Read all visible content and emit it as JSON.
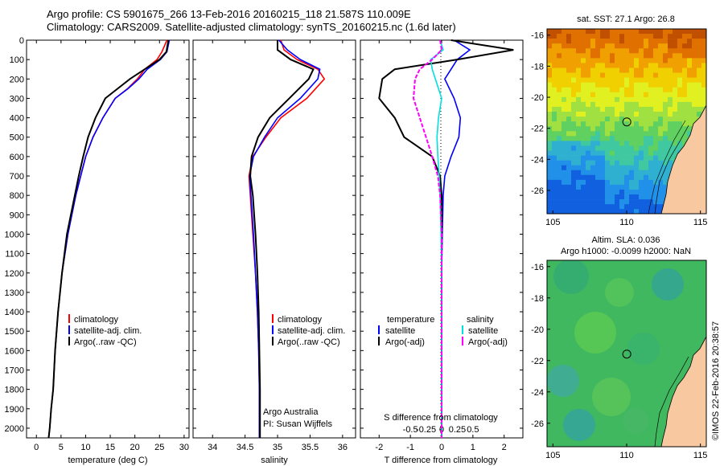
{
  "header": {
    "line1": "Argo profile: CS 5901675_266 13-Feb-2016 20160215_118 21.587S 110.009E",
    "line2": "Climatology: CARS2009. Satellite-adjusted climatology: synTS_20160215.nc (1.6d later)"
  },
  "colors": {
    "climatology": "#ff0000",
    "satellite": "#0000ff",
    "argo": "#000000",
    "sal_satellite": "#00e0e0",
    "sal_argo": "#ff00ff",
    "land": "#f8c8a0"
  },
  "chart_data": [
    {
      "type": "line",
      "id": "temperature",
      "xlabel": "temperature (deg C)",
      "xlim": [
        -2,
        31
      ],
      "ylim": [
        0,
        2050
      ],
      "xticks": [
        0,
        5,
        10,
        15,
        20,
        25,
        30
      ],
      "yticks": [
        0,
        100,
        200,
        300,
        400,
        500,
        600,
        700,
        800,
        900,
        1000,
        1100,
        1200,
        1300,
        1400,
        1500,
        1600,
        1700,
        1800,
        1900,
        2000
      ],
      "legend": [
        "climatology",
        "satellite-adj. clim.",
        "Argo(..raw -QC)"
      ],
      "series": [
        {
          "name": "climatology",
          "x": [
            26.5,
            25.5,
            24.5,
            22,
            20.5,
            18.5,
            16,
            13.5,
            11.5,
            10,
            9,
            8,
            7.2,
            6.4,
            5.2,
            4.4,
            3.8,
            3.4,
            3,
            2.7,
            2.5
          ],
          "y": [
            0,
            60,
            100,
            150,
            200,
            250,
            300,
            400,
            500,
            600,
            700,
            800,
            900,
            1000,
            1200,
            1400,
            1600,
            1800,
            1900,
            2000,
            2050
          ]
        },
        {
          "name": "satellite-adj. clim.",
          "x": [
            27,
            26.5,
            25.2,
            22.5,
            20.8,
            18.6,
            16,
            13.5,
            11.5,
            10,
            9,
            8,
            7.2,
            6.4,
            5.2,
            4.4,
            3.8,
            3.4,
            3,
            2.7,
            2.5
          ],
          "y": [
            0,
            60,
            100,
            150,
            200,
            250,
            300,
            400,
            500,
            600,
            700,
            800,
            900,
            1000,
            1200,
            1400,
            1600,
            1800,
            1900,
            2000,
            2050
          ]
        },
        {
          "name": "Argo(..raw -QC)",
          "x": [
            26.8,
            26.4,
            25,
            22,
            19,
            16.5,
            14,
            12,
            10.5,
            9.5,
            8.6,
            7.8,
            7,
            6.2,
            5.2,
            4.4,
            3.8,
            3.4,
            3,
            2.7,
            2.5
          ],
          "y": [
            0,
            60,
            100,
            150,
            200,
            250,
            300,
            400,
            500,
            600,
            700,
            800,
            900,
            1000,
            1200,
            1400,
            1600,
            1800,
            1900,
            2000,
            2050
          ]
        }
      ]
    },
    {
      "type": "line",
      "id": "salinity",
      "xlabel": "salinity",
      "xlim": [
        33.7,
        36.2
      ],
      "ylim": [
        0,
        2050
      ],
      "xticks": [
        34,
        34.5,
        35,
        35.5,
        36
      ],
      "legend": [
        "climatology",
        "satellite-adj. clim.",
        "Argo(..raw -QC)"
      ],
      "annotation": [
        "Argo Australia",
        "PI: Susan Wijffels"
      ],
      "series": [
        {
          "name": "climatology",
          "x": [
            35.05,
            35.1,
            35.3,
            35.62,
            35.72,
            35.45,
            35.05,
            34.82,
            34.62,
            34.56,
            34.58,
            34.62,
            34.66,
            34.69,
            34.71,
            34.72,
            34.72
          ],
          "y": [
            0,
            50,
            100,
            150,
            200,
            300,
            400,
            500,
            600,
            700,
            800,
            1000,
            1200,
            1400,
            1600,
            1800,
            2050
          ]
        },
        {
          "name": "satellite-adj. clim.",
          "x": [
            35.02,
            35.15,
            35.35,
            35.65,
            35.62,
            35.35,
            35.0,
            34.8,
            34.63,
            34.57,
            34.59,
            34.63,
            34.66,
            34.69,
            34.71,
            34.72,
            34.72
          ],
          "y": [
            0,
            50,
            100,
            150,
            200,
            300,
            400,
            500,
            600,
            700,
            800,
            1000,
            1200,
            1400,
            1600,
            1800,
            2050
          ]
        },
        {
          "name": "Argo(..raw -QC)",
          "x": [
            35.0,
            35.0,
            35.2,
            35.55,
            35.48,
            35.18,
            34.88,
            34.7,
            34.6,
            34.58,
            34.62,
            34.66,
            34.69,
            34.71,
            34.72,
            34.73,
            34.73
          ],
          "y": [
            0,
            50,
            100,
            150,
            200,
            300,
            400,
            500,
            600,
            700,
            800,
            1000,
            1200,
            1400,
            1600,
            1800,
            2050
          ]
        }
      ]
    },
    {
      "type": "line",
      "id": "difference",
      "xlabel": "T difference from climatology",
      "xlabel2": "S difference from climatology",
      "xlim": [
        -2.6,
        2.6
      ],
      "ylim": [
        0,
        2050
      ],
      "xticks": [
        -2,
        -1,
        0,
        1,
        2
      ],
      "xticks_s": [
        "-0.5",
        "-0.25",
        "0",
        "0.25",
        "0.5"
      ],
      "legend_title_t": "temperature",
      "legend_title_s": "salinity",
      "legend": [
        "satellite",
        "Argo(-adj)",
        "satellite",
        "Argo(-adj)"
      ],
      "series": [
        {
          "name": "satellite",
          "group": "temperature",
          "x": [
            0.4,
            0.9,
            0.5,
            0.3,
            0.1,
            0.4,
            0.6,
            0.55,
            0.3,
            0.1,
            0.05,
            0.02,
            0.0,
            0.0,
            0.0,
            0.0
          ],
          "y": [
            0,
            50,
            100,
            150,
            200,
            300,
            400,
            500,
            600,
            700,
            800,
            1000,
            1200,
            1500,
            1800,
            2050
          ]
        },
        {
          "name": "Argo(-adj)",
          "group": "temperature",
          "x": [
            0.3,
            2.3,
            0.5,
            -1.5,
            -1.9,
            -2.0,
            -1.5,
            -1.2,
            -0.3,
            -0.05,
            0.0,
            0.0,
            0.0,
            0.0,
            0.0,
            0.0
          ],
          "y": [
            0,
            50,
            100,
            150,
            200,
            300,
            400,
            500,
            600,
            700,
            800,
            1000,
            1200,
            1500,
            1800,
            2050
          ]
        },
        {
          "name": "satellite",
          "group": "salinity",
          "x": [
            -0.05,
            0.05,
            -0.35,
            -0.3,
            -0.2,
            0.0,
            -0.1,
            -0.15,
            -0.12,
            -0.08,
            -0.05,
            -0.02,
            0.0,
            0.0,
            0.0,
            0.0
          ],
          "y": [
            0,
            50,
            100,
            150,
            200,
            300,
            400,
            500,
            600,
            700,
            800,
            1000,
            1200,
            1500,
            1800,
            2050
          ]
        },
        {
          "name": "Argo(-adj)",
          "group": "salinity",
          "x": [
            -0.05,
            0.0,
            -0.3,
            -0.7,
            -0.85,
            -0.9,
            -0.7,
            -0.5,
            -0.3,
            -0.12,
            -0.05,
            0.0,
            0.0,
            0.0,
            0.0,
            0.0
          ],
          "y": [
            0,
            50,
            100,
            150,
            200,
            300,
            400,
            500,
            600,
            700,
            800,
            1000,
            1200,
            1500,
            1800,
            2050
          ]
        }
      ]
    },
    {
      "type": "heatmap",
      "id": "sst-map",
      "title": "sat. SST: 27.1 Argo: 26.8",
      "xlim": [
        104.6,
        115.4
      ],
      "ylim": [
        -27.5,
        -15.6
      ],
      "xticks": [
        105,
        110,
        115
      ],
      "yticks": [
        -16,
        -18,
        -20,
        -22,
        -24,
        -26
      ],
      "marker": {
        "lon": 110.009,
        "lat": -21.587
      }
    },
    {
      "type": "heatmap",
      "id": "sla-map",
      "title": "Altim. SLA: 0.036",
      "title2": "Argo h1000: -0.0099 h2000: NaN",
      "xlim": [
        104.6,
        115.4
      ],
      "ylim": [
        -27.5,
        -15.6
      ],
      "xticks": [
        105,
        110,
        115
      ],
      "yticks": [
        -16,
        -18,
        -20,
        -22,
        -24,
        -26
      ],
      "marker": {
        "lon": 110.009,
        "lat": -21.587
      }
    }
  ],
  "watermark": "©IMOS 22-Feb-2016 20:38:57"
}
